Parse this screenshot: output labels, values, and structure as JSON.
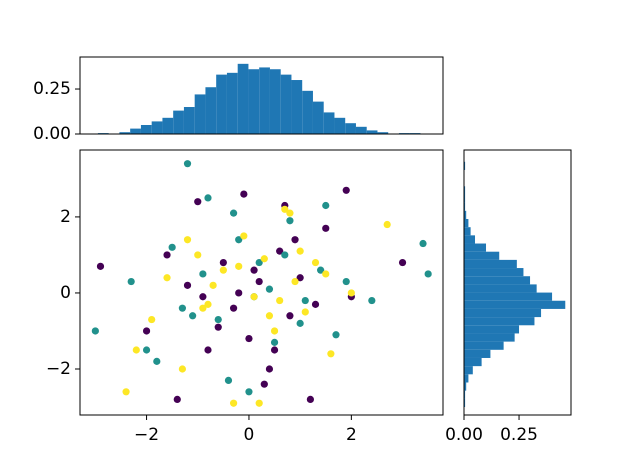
{
  "chart_data": [
    {
      "type": "scatter",
      "xlim": [
        -3.3,
        3.79
      ],
      "ylim": [
        -3.21,
        3.76
      ],
      "xticks": [
        {
          "value": -2,
          "label": "−2"
        },
        0,
        2
      ],
      "yticks": [
        {
          "value": -2,
          "label": "−2"
        },
        0,
        2
      ],
      "series": [
        {
          "color": "#440154",
          "x": [
            -2.9,
            -1.4,
            -1.0,
            -0.8,
            -0.5,
            -0.3,
            -0.1,
            0.0,
            0.2,
            0.4,
            0.6,
            0.8,
            1.0,
            1.2,
            1.5,
            2.0,
            3.0,
            -2.0,
            -1.2,
            0.5,
            -0.6,
            0.9,
            1.9,
            -0.2,
            0.3,
            -1.6,
            1.3,
            0.7,
            -0.9,
            0.1
          ],
          "values": [
            0.7,
            -2.8,
            2.4,
            -1.5,
            0.8,
            -0.4,
            2.6,
            -1.2,
            0.3,
            -2.0,
            1.1,
            -0.6,
            0.4,
            -2.8,
            1.7,
            -0.1,
            0.8,
            -1.0,
            0.2,
            -1.5,
            -0.9,
            1.4,
            2.7,
            0.0,
            -2.4,
            1.0,
            -0.3,
            2.3,
            -0.1,
            0.6
          ]
        },
        {
          "color": "#21918c",
          "x": [
            -3.0,
            -2.3,
            -1.8,
            -1.5,
            -1.2,
            -0.9,
            -0.6,
            -0.3,
            0.0,
            0.2,
            0.5,
            0.8,
            1.1,
            1.4,
            1.7,
            2.4,
            3.5,
            3.4,
            -1.3,
            -0.4,
            0.4,
            1.0,
            -2.0,
            0.7,
            -0.8,
            1.9,
            -1.1,
            0.1,
            1.5,
            -0.2
          ],
          "values": [
            -1.0,
            0.3,
            -1.8,
            1.2,
            3.4,
            0.5,
            -0.7,
            2.1,
            -2.6,
            0.8,
            -1.3,
            1.9,
            -0.2,
            0.6,
            -1.1,
            -0.2,
            0.5,
            1.3,
            -0.4,
            -2.3,
            0.1,
            -0.8,
            -1.5,
            1.0,
            2.5,
            0.3,
            -0.6,
            -0.1,
            2.3,
            1.4
          ]
        },
        {
          "color": "#fde725",
          "x": [
            -2.4,
            -2.2,
            -1.9,
            -1.6,
            -1.3,
            -1.0,
            -0.8,
            -0.5,
            -0.3,
            -0.1,
            0.1,
            0.3,
            0.5,
            0.7,
            0.9,
            1.1,
            1.3,
            1.6,
            2.0,
            2.7,
            -0.7,
            0.4,
            -1.2,
            0.6,
            -0.2,
            1.0,
            0.2,
            -0.9,
            1.5,
            0.8
          ],
          "values": [
            -2.6,
            -1.5,
            -0.7,
            0.4,
            -2.0,
            1.0,
            -0.3,
            0.6,
            -2.9,
            1.5,
            -0.1,
            0.9,
            -1.0,
            2.2,
            0.3,
            -0.5,
            0.8,
            -1.6,
            0.0,
            1.8,
            0.2,
            -0.6,
            1.4,
            -0.2,
            0.7,
            1.1,
            -2.9,
            -0.4,
            0.5,
            2.1
          ]
        }
      ]
    },
    {
      "type": "histogram",
      "orientation": "vertical",
      "color": "#1f77b4",
      "xlim": [
        -3.3,
        3.79
      ],
      "ylim": [
        0,
        0.428
      ],
      "yticks": [
        {
          "value": 0,
          "label": "0.00"
        },
        {
          "value": 0.25,
          "label": "0.25"
        }
      ],
      "bins": [
        -2.95,
        -2.74,
        -2.53,
        -2.32,
        -2.11,
        -1.9,
        -1.69,
        -1.48,
        -1.27,
        -1.06,
        -0.85,
        -0.64,
        -0.43,
        -0.22,
        -0.01,
        0.2,
        0.41,
        0.62,
        0.83,
        1.04,
        1.25,
        1.46,
        1.67,
        1.88,
        2.09,
        2.3,
        2.51,
        2.72,
        2.93,
        3.14,
        3.35
      ],
      "values": [
        0.005,
        0,
        0.01,
        0.03,
        0.05,
        0.07,
        0.09,
        0.13,
        0.15,
        0.22,
        0.26,
        0.33,
        0.34,
        0.39,
        0.36,
        0.37,
        0.36,
        0.33,
        0.3,
        0.24,
        0.18,
        0.12,
        0.09,
        0.06,
        0.04,
        0.02,
        0.01,
        0,
        0.005,
        0.005
      ]
    },
    {
      "type": "histogram",
      "orientation": "horizontal",
      "color": "#1f77b4",
      "ylim": [
        -3.21,
        3.76
      ],
      "xlim": [
        0,
        0.486
      ],
      "xticks": [
        {
          "value": 0,
          "label": "0.00"
        },
        {
          "value": 0.25,
          "label": "0.25"
        }
      ],
      "bins": [
        -3.0,
        -2.785,
        -2.57,
        -2.355,
        -2.14,
        -1.925,
        -1.71,
        -1.495,
        -1.28,
        -1.065,
        -0.85,
        -0.635,
        -0.42,
        -0.205,
        0.01,
        0.225,
        0.44,
        0.655,
        0.87,
        1.085,
        1.3,
        1.515,
        1.73,
        1.945,
        2.16,
        2.375,
        2.59,
        2.805,
        3.02,
        3.235,
        3.45
      ],
      "values": [
        0.005,
        0.005,
        0.01,
        0.02,
        0.04,
        0.08,
        0.12,
        0.18,
        0.23,
        0.25,
        0.32,
        0.35,
        0.46,
        0.4,
        0.33,
        0.3,
        0.27,
        0.24,
        0.16,
        0.1,
        0.05,
        0.03,
        0.02,
        0.01,
        0.005,
        0.005,
        0.005,
        0,
        0,
        0.005
      ]
    }
  ]
}
